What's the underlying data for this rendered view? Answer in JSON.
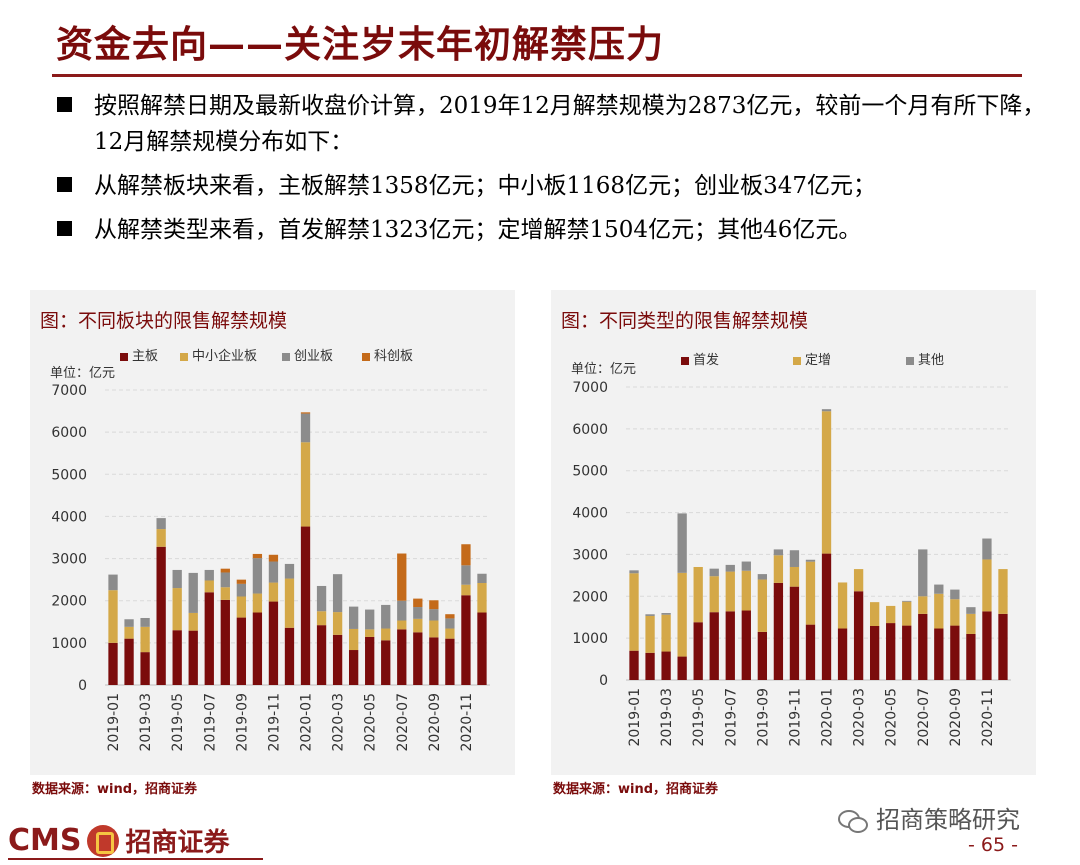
{
  "page": {
    "title": "资金去向——关注岁末年初解禁压力",
    "bullets": [
      "按照解禁日期及最新收盘价计算，2019年12月解禁规模为2873亿元，较前一个月有所下降，12月解禁规模分布如下：",
      "从解禁板块来看，主板解禁1358亿元；中小板1168亿元；创业板347亿元；",
      "从解禁类型来看，首发解禁1323亿元；定增解禁1504亿元；其他46亿元。"
    ],
    "brand": {
      "cms": "CMS",
      "name": "招商证券"
    },
    "wechat": "招商策略研究",
    "page_number": "- 65 -"
  },
  "panels": [
    {
      "title": "图：不同板块的限售解禁规模",
      "unit": "单位：亿元",
      "source": "数据来源：wind，招商证券"
    },
    {
      "title": "图：不同类型的限售解禁规模",
      "unit": "单位：亿元",
      "source": "数据来源：wind，招商证券"
    }
  ],
  "chart_data": [
    {
      "type": "bar",
      "stacked": true,
      "title": "图：不同板块的限售解禁规模",
      "unit_label": "单位：亿元",
      "ylim": [
        0,
        7000
      ],
      "yticks": [
        0,
        1000,
        2000,
        3000,
        4000,
        5000,
        6000,
        7000
      ],
      "grid": true,
      "legend_position": "top",
      "categories": [
        "2019-01",
        "2019-02",
        "2019-03",
        "2019-04",
        "2019-05",
        "2019-06",
        "2019-07",
        "2019-08",
        "2019-09",
        "2019-10",
        "2019-11",
        "2019-12",
        "2020-01",
        "2020-02",
        "2020-03",
        "2020-04",
        "2020-05",
        "2020-06",
        "2020-07",
        "2020-08",
        "2020-09",
        "2020-10",
        "2020-11",
        "2020-12"
      ],
      "x_tick_labels": [
        "2019-01",
        "2019-03",
        "2019-05",
        "2019-07",
        "2019-09",
        "2019-11",
        "2020-01",
        "2020-03",
        "2020-05",
        "2020-07",
        "2020-09",
        "2020-11"
      ],
      "series": [
        {
          "name": "主板",
          "color": "#7b0c0c",
          "values": [
            1000,
            1100,
            780,
            3280,
            1300,
            1290,
            2200,
            2020,
            1600,
            1720,
            1980,
            1358,
            3760,
            1420,
            1190,
            830,
            1140,
            1060,
            1320,
            1250,
            1130,
            1100,
            2130,
            1720
          ]
        },
        {
          "name": "中小企业板",
          "color": "#d4a848",
          "values": [
            1250,
            280,
            600,
            420,
            1000,
            420,
            280,
            300,
            500,
            450,
            450,
            1168,
            2000,
            330,
            540,
            500,
            180,
            280,
            210,
            320,
            400,
            240,
            250,
            700
          ]
        },
        {
          "name": "创业板",
          "color": "#8c8c8c",
          "values": [
            370,
            180,
            210,
            260,
            430,
            950,
            250,
            350,
            300,
            840,
            500,
            347,
            680,
            600,
            900,
            530,
            470,
            560,
            470,
            280,
            270,
            240,
            460,
            220
          ]
        },
        {
          "name": "科创板",
          "color": "#c46a1a",
          "values": [
            0,
            0,
            0,
            0,
            0,
            0,
            0,
            90,
            100,
            100,
            160,
            0,
            30,
            0,
            0,
            0,
            0,
            0,
            1120,
            200,
            210,
            100,
            500,
            0
          ]
        }
      ]
    },
    {
      "type": "bar",
      "stacked": true,
      "title": "图：不同类型的限售解禁规模",
      "unit_label": "单位：亿元",
      "ylim": [
        0,
        7000
      ],
      "yticks": [
        0,
        1000,
        2000,
        3000,
        4000,
        5000,
        6000,
        7000
      ],
      "grid": true,
      "legend_position": "top",
      "categories": [
        "2019-01",
        "2019-02",
        "2019-03",
        "2019-04",
        "2019-05",
        "2019-06",
        "2019-07",
        "2019-08",
        "2019-09",
        "2019-10",
        "2019-11",
        "2019-12",
        "2020-01",
        "2020-02",
        "2020-03",
        "2020-04",
        "2020-05",
        "2020-06",
        "2020-07",
        "2020-08",
        "2020-09",
        "2020-10",
        "2020-11",
        "2020-12"
      ],
      "x_tick_labels": [
        "2019-01",
        "2019-03",
        "2019-05",
        "2019-07",
        "2019-09",
        "2019-11",
        "2020-01",
        "2020-03",
        "2020-05",
        "2020-07",
        "2020-09",
        "2020-11"
      ],
      "series": [
        {
          "name": "首发",
          "color": "#7b0c0c",
          "values": [
            700,
            650,
            680,
            560,
            1380,
            1620,
            1640,
            1660,
            1150,
            2320,
            2230,
            1323,
            3020,
            1230,
            2120,
            1290,
            1360,
            1300,
            1580,
            1230,
            1300,
            1100,
            1640,
            1580
          ]
        },
        {
          "name": "定增",
          "color": "#d4a848",
          "values": [
            1850,
            880,
            880,
            2000,
            1320,
            860,
            950,
            950,
            1250,
            660,
            470,
            1504,
            3400,
            1100,
            530,
            570,
            410,
            570,
            420,
            830,
            630,
            480,
            1240,
            1070
          ]
        },
        {
          "name": "其他",
          "color": "#8c8c8c",
          "values": [
            70,
            40,
            40,
            1420,
            0,
            180,
            160,
            220,
            130,
            140,
            400,
            46,
            50,
            0,
            0,
            0,
            0,
            20,
            1120,
            220,
            230,
            160,
            500,
            0
          ]
        }
      ]
    }
  ]
}
